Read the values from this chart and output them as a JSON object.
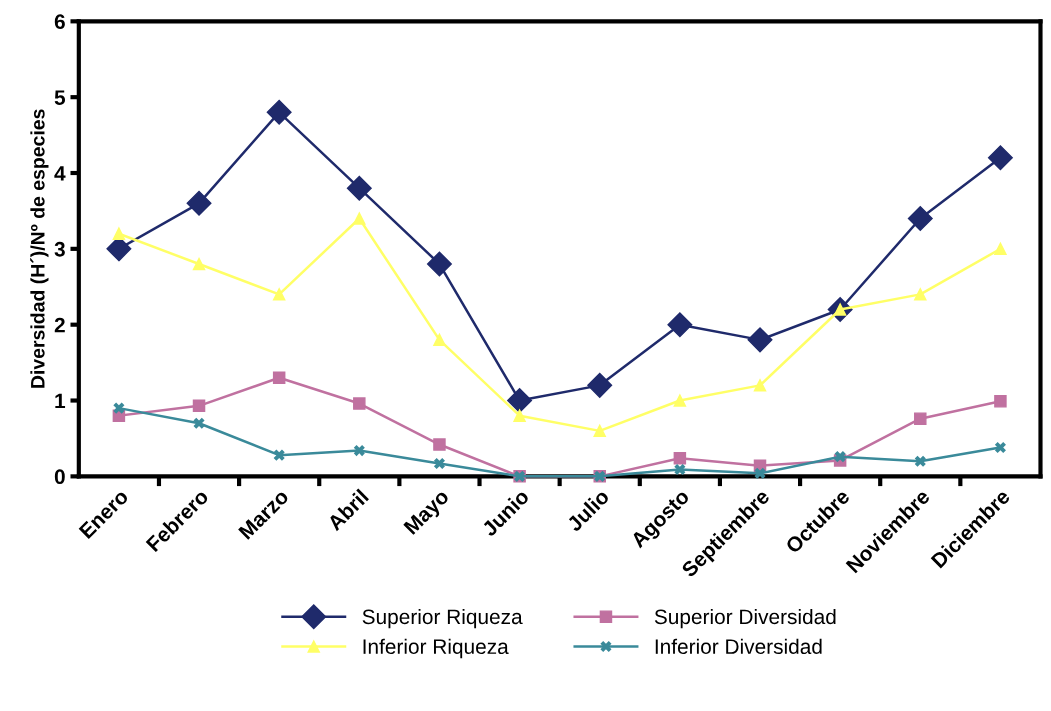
{
  "chart_data": {
    "type": "line",
    "ylabel": "Diversidad (H´)/Nº de especies",
    "categories": [
      "Enero",
      "Febrero",
      "Marzo",
      "Abril",
      "Mayo",
      "Junio",
      "Julio",
      "Agosto",
      "Septiembre",
      "Octubre",
      "Noviembre",
      "Diciembre"
    ],
    "series": [
      {
        "name": "Superior Riqueza",
        "color": "#1f2a6b",
        "marker": "diamond",
        "values": [
          3.0,
          3.6,
          4.8,
          3.8,
          2.8,
          1.0,
          1.2,
          2.0,
          1.8,
          2.2,
          3.4,
          4.2
        ]
      },
      {
        "name": "Inferior Riqueza",
        "color": "#ffff66",
        "marker": "triangle",
        "values": [
          3.2,
          2.8,
          2.4,
          3.4,
          1.8,
          0.8,
          0.6,
          1.0,
          1.2,
          2.2,
          2.4,
          3.0
        ]
      },
      {
        "name": "Superior Diversidad",
        "color": "#c071a0",
        "marker": "square",
        "values": [
          0.8,
          0.93,
          1.3,
          0.96,
          0.42,
          0.0,
          0.0,
          0.24,
          0.14,
          0.21,
          0.76,
          0.99
        ]
      },
      {
        "name": "Inferior Diversidad",
        "color": "#3a8a9a",
        "marker": "cross",
        "values": [
          0.9,
          0.7,
          0.28,
          0.34,
          0.17,
          0.0,
          0.0,
          0.09,
          0.04,
          0.26,
          0.2,
          0.38
        ]
      }
    ],
    "ylim": [
      0,
      6
    ],
    "yticks": [
      0,
      1,
      2,
      3,
      4,
      5,
      6
    ],
    "grid": false,
    "legend": "bottom",
    "line_style": "solid"
  }
}
